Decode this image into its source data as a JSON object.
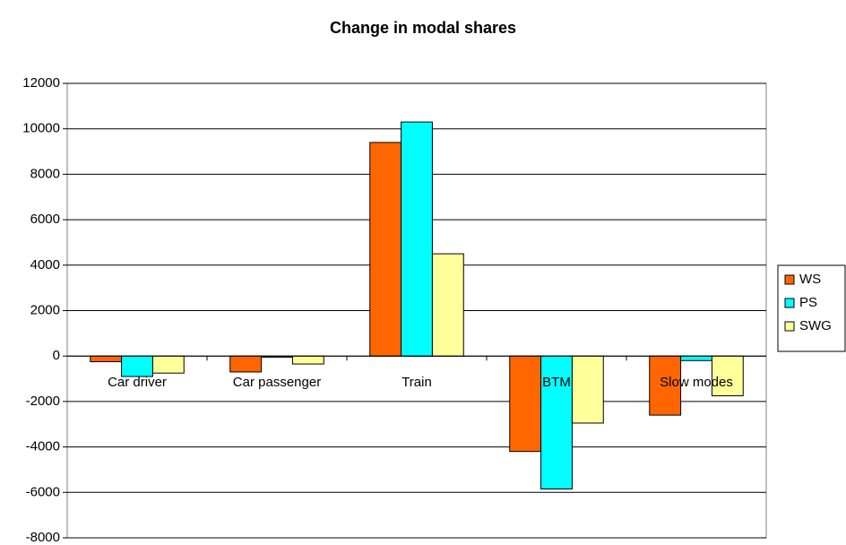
{
  "chart_data": {
    "type": "bar",
    "title": "Change in modal shares",
    "categories": [
      "Car driver",
      "Car passenger",
      "Train",
      "BTM",
      "Slow modes"
    ],
    "series": [
      {
        "name": "WS",
        "color": "#ff6600",
        "values": [
          -250,
          -700,
          9400,
          -4200,
          -2600
        ]
      },
      {
        "name": "PS",
        "color": "#00ffff",
        "values": [
          -900,
          -50,
          10300,
          -5850,
          -200
        ]
      },
      {
        "name": "SWG",
        "color": "#ffff99",
        "values": [
          -750,
          -350,
          4500,
          -2950,
          -1750
        ]
      }
    ],
    "ylim": [
      -8000,
      12000
    ],
    "yticks": [
      -8000,
      -6000,
      -4000,
      -2000,
      0,
      2000,
      4000,
      6000,
      8000,
      10000,
      12000
    ],
    "grid": true,
    "legend": "right"
  }
}
